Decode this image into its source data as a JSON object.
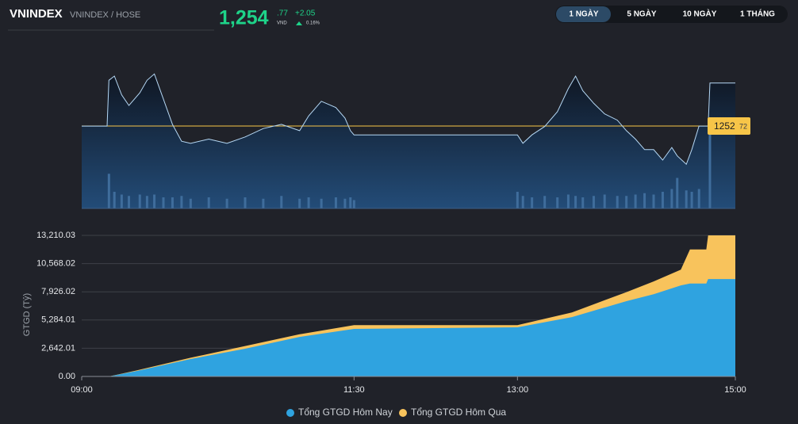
{
  "header": {
    "symbol": "VNINDEX",
    "exchange": "VNINDEX / HOSE",
    "price_whole": "1,254",
    "price_decimal": ".77",
    "currency": "VND",
    "change": "+2.05",
    "change_percent": "0.16%"
  },
  "tabs": [
    "1 NGÀY",
    "5 NGÀY",
    "10 NGÀY",
    "1 THÁNG"
  ],
  "chart_data": [
    {
      "type": "line",
      "xlim": [
        "09:00",
        "15:00"
      ],
      "ylim": [
        1248.8,
        1255.4
      ],
      "x": [
        "09:00",
        "09:14",
        "09:15",
        "09:18",
        "09:22",
        "09:26",
        "09:32",
        "09:36",
        "09:40",
        "09:45",
        "09:50",
        "09:55",
        "10:00",
        "10:10",
        "10:20",
        "10:30",
        "10:40",
        "10:50",
        "11:00",
        "11:05",
        "11:12",
        "11:20",
        "11:25",
        "11:28",
        "11:30",
        "13:00",
        "13:03",
        "13:08",
        "13:15",
        "13:22",
        "13:28",
        "13:32",
        "13:36",
        "13:42",
        "13:48",
        "13:55",
        "14:00",
        "14:05",
        "14:10",
        "14:15",
        "14:20",
        "14:25",
        "14:28",
        "14:33",
        "14:36",
        "14:40",
        "14:45",
        "14:46",
        "15:00"
      ],
      "series": [
        {
          "color": "#b5d8f5",
          "values": [
            1252.72,
            1252.72,
            1254.9,
            1255.1,
            1254.2,
            1253.7,
            1254.3,
            1254.9,
            1255.2,
            1254.0,
            1252.8,
            1252.0,
            1251.9,
            1252.1,
            1251.9,
            1252.2,
            1252.6,
            1252.8,
            1252.5,
            1253.2,
            1253.9,
            1253.6,
            1253.1,
            1252.5,
            1252.3,
            1252.3,
            1251.9,
            1252.3,
            1252.7,
            1253.4,
            1254.5,
            1255.1,
            1254.4,
            1253.8,
            1253.3,
            1253.0,
            1252.5,
            1252.1,
            1251.6,
            1251.6,
            1251.1,
            1251.7,
            1251.3,
            1250.9,
            1251.6,
            1252.72,
            1252.72,
            1254.77,
            1254.77
          ]
        }
      ],
      "volume": {
        "color": "#3f6d9c",
        "vlim": [
          0,
          100
        ],
        "values": [
          null,
          null,
          25,
          12,
          10,
          9,
          10,
          9,
          10,
          8,
          8,
          9,
          7,
          8,
          7,
          8,
          7,
          9,
          7,
          8,
          7,
          8,
          7,
          8,
          6,
          12,
          9,
          8,
          9,
          8,
          10,
          9,
          8,
          9,
          10,
          9,
          9,
          10,
          11,
          10,
          12,
          14,
          22,
          13,
          12,
          14,
          null,
          58,
          null
        ]
      },
      "reference": {
        "value": 1252.72,
        "color": "#f7c548",
        "label_whole": "1252",
        "label_decimal": "72"
      }
    },
    {
      "type": "area",
      "xlim": [
        "09:00",
        "15:00"
      ],
      "xticks": [
        "09:00",
        "11:30",
        "13:00",
        "15:00"
      ],
      "ylim": [
        0,
        13210.03
      ],
      "yticks": [
        {
          "value": 0,
          "label": "0.00"
        },
        {
          "value": 2642.01,
          "label": "2,642.01"
        },
        {
          "value": 5284.01,
          "label": "5,284.01"
        },
        {
          "value": 7926.02,
          "label": "7,926.02"
        },
        {
          "value": 10568.02,
          "label": "10,568.02"
        },
        {
          "value": 13210.03,
          "label": "13,210.03"
        }
      ],
      "ylabel": "GTGD (Tỷ)",
      "grid": true,
      "x": [
        "09:00",
        "09:15",
        "09:30",
        "10:00",
        "10:30",
        "11:00",
        "11:30",
        "13:00",
        "13:30",
        "14:00",
        "14:15",
        "14:30",
        "14:35",
        "14:44",
        "14:45",
        "15:00"
      ],
      "series": [
        {
          "name": "Tổng GTGD Hôm Qua",
          "color": "#f8c35c",
          "values": [
            0,
            0,
            560,
            1750,
            2850,
            3950,
            4800,
            4800,
            6000,
            7900,
            8900,
            10000,
            11900,
            11900,
            13210.03,
            13210.03
          ]
        },
        {
          "name": "Tổng GTGD Hôm Nay",
          "color": "#2fa3e0",
          "values": [
            0,
            0,
            500,
            1630,
            2600,
            3700,
            4450,
            4600,
            5560,
            7050,
            7700,
            8530,
            8700,
            8700,
            9120,
            9120
          ]
        }
      ]
    }
  ]
}
